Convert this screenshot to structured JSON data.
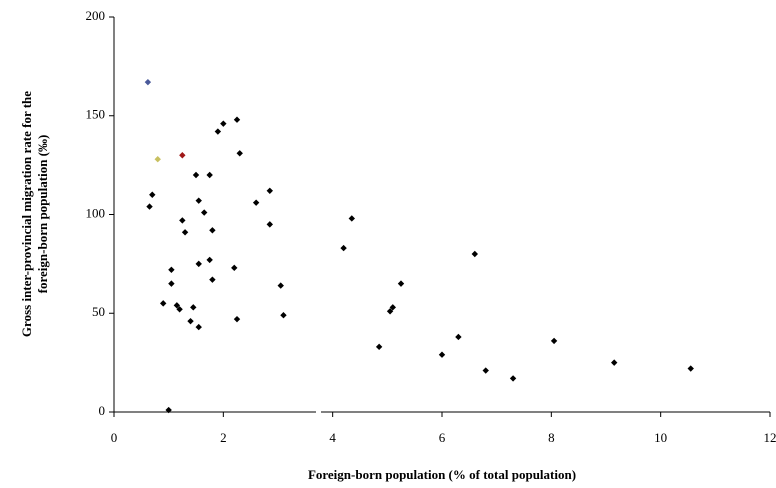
{
  "chart_data": {
    "type": "scatter",
    "xlabel": "Foreign-born population (% of total population)",
    "ylabel": [
      "Gross inter-provincial migration rate for the",
      "foreign-born population (‰)"
    ],
    "xlim": [
      0,
      12
    ],
    "xticks": [
      0,
      2,
      4,
      6,
      8,
      10,
      12
    ],
    "ylim": [
      0,
      200
    ],
    "yticks": [
      0,
      50,
      100,
      150,
      200
    ],
    "series": [
      {
        "color": "#000000",
        "x": [
          0.7,
          0.65,
          2.25,
          2.0,
          1.9,
          2.3,
          1.5,
          1.75,
          2.85,
          1.55,
          2.6,
          1.65,
          1.25,
          2.85,
          1.3,
          1.8,
          4.35,
          4.2,
          1.75,
          1.55,
          2.2,
          1.05,
          1.8,
          1.05,
          3.05,
          6.6,
          5.25,
          0.9,
          1.15,
          1.2,
          1.45,
          5.1,
          5.05,
          3.1,
          2.25,
          1.4,
          1.55,
          4.85,
          6.3,
          8.05,
          6.0,
          6.8,
          7.3,
          9.15,
          10.55,
          1.0
        ],
        "values": [
          110,
          104,
          148,
          146,
          142,
          131,
          120,
          120,
          112,
          107,
          106,
          101,
          97,
          95,
          91,
          92,
          98,
          83,
          77,
          75,
          73,
          72,
          67,
          65,
          64,
          80,
          65,
          55,
          54,
          52,
          53,
          53,
          51,
          49,
          47,
          46,
          43,
          33,
          38,
          36,
          29,
          21,
          17,
          25,
          22,
          1
        ]
      },
      {
        "color": "#4a5a9a",
        "x": [
          0.62
        ],
        "values": [
          167
        ]
      },
      {
        "color": "#c8c060",
        "x": [
          0.8
        ],
        "values": [
          128
        ]
      },
      {
        "color": "#a01818",
        "x": [
          1.25
        ],
        "values": [
          130
        ]
      }
    ]
  }
}
